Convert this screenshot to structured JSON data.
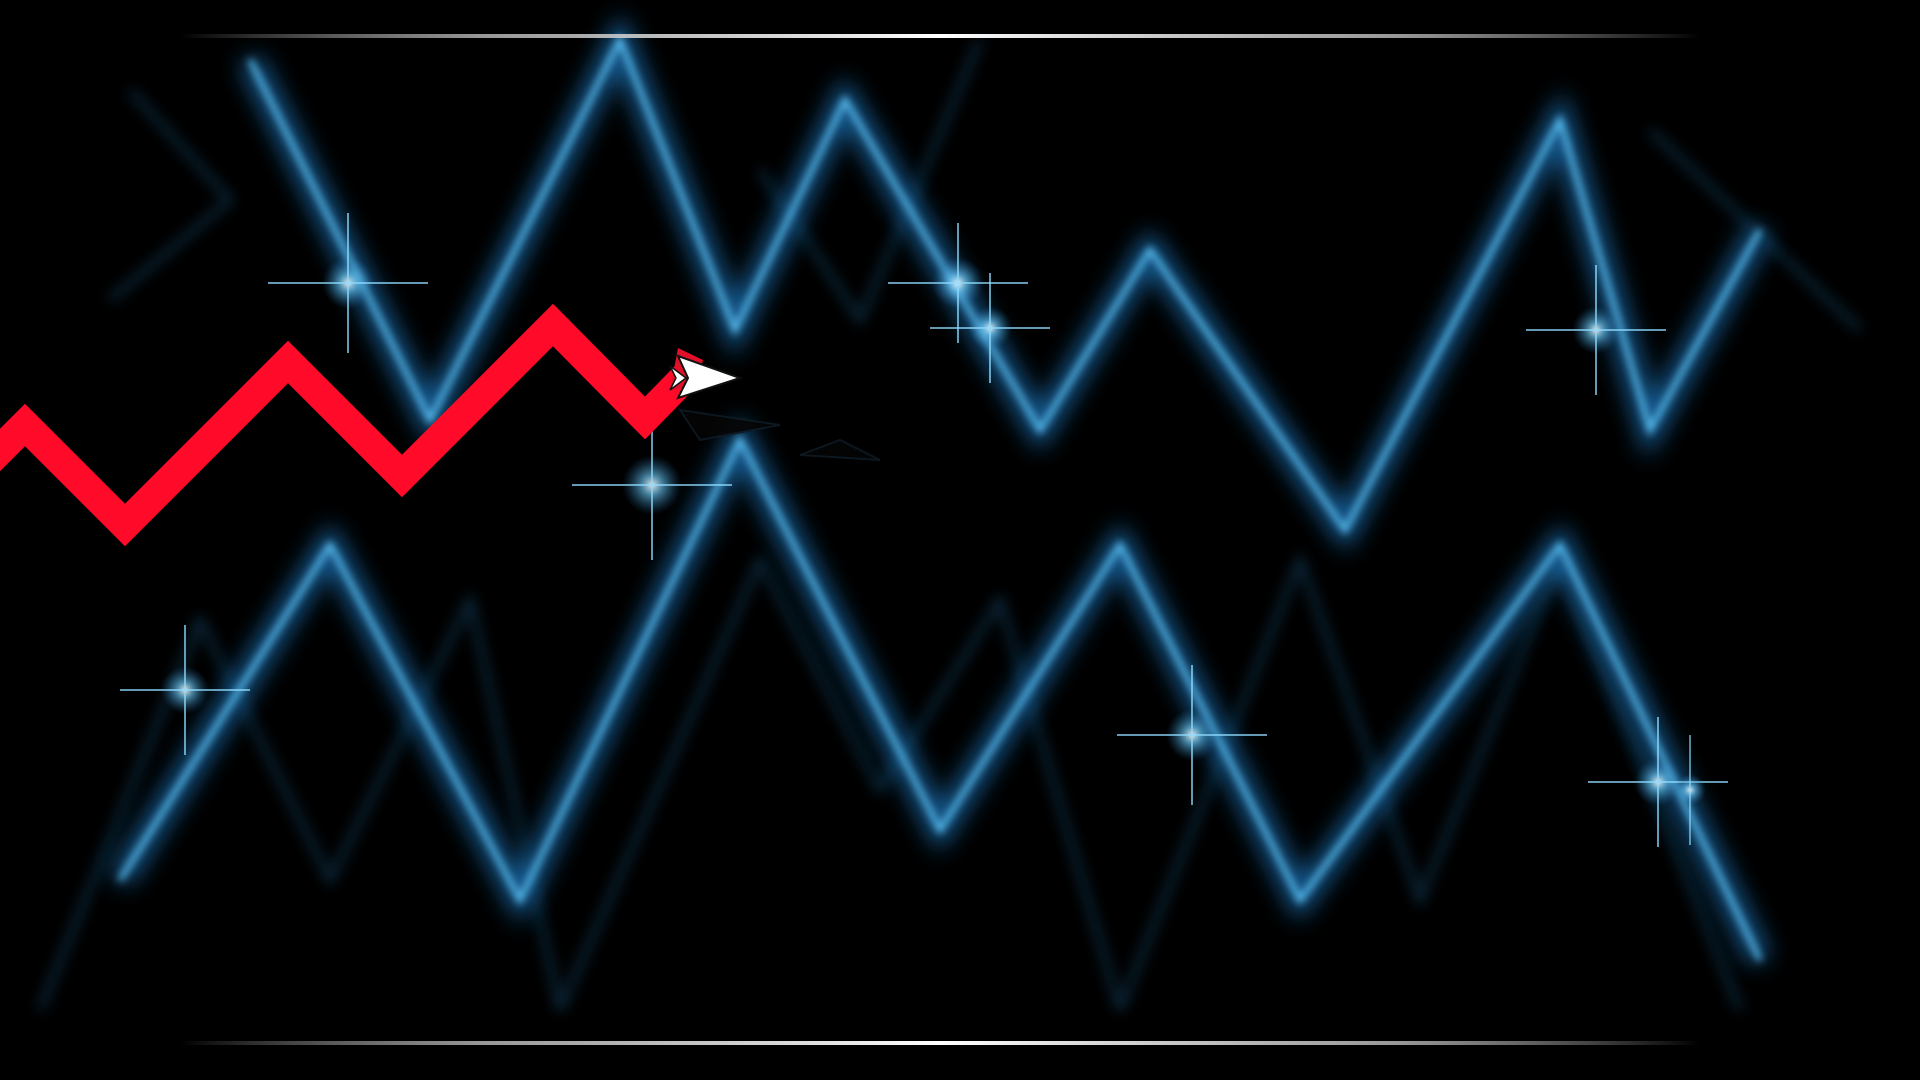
{
  "game": {
    "mode": "wave",
    "colors": {
      "background": "#000000",
      "glow_lines": "#4fb8f0",
      "glow_halo": "#1f6fae",
      "trail": "#ff0a28",
      "player_body": "#ffffff",
      "player_accent": "#e0102a",
      "boundary_lines": "#e8e8e8"
    }
  }
}
